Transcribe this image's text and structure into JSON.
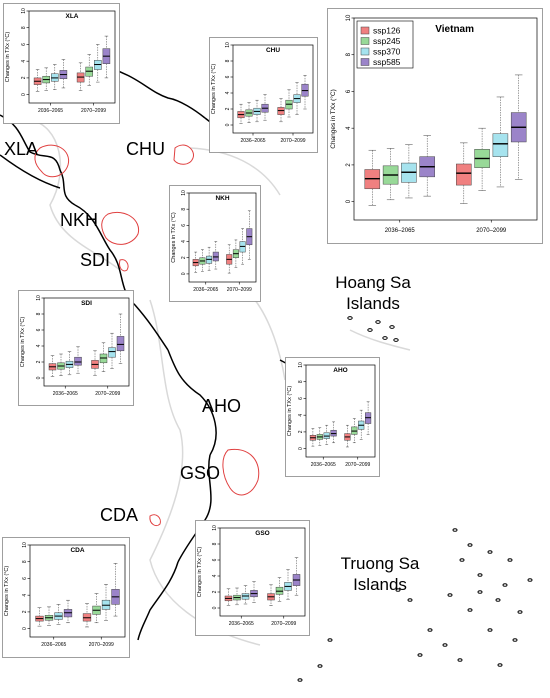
{
  "legend": {
    "entries": [
      {
        "name": "ssp126",
        "color": "#F08080"
      },
      {
        "name": "ssp245",
        "color": "#98D998"
      },
      {
        "name": "ssp370",
        "color": "#A6E3EE"
      },
      {
        "name": "ssp585",
        "color": "#9B84C9"
      }
    ]
  },
  "map": {
    "region_codes": [
      "XLA",
      "CHU",
      "NKH",
      "SDI",
      "AHO",
      "GSO",
      "CDA"
    ],
    "islands": {
      "hoang_sa_line1": "Hoang Sa",
      "hoang_sa_line2": "Islands",
      "truong_sa_line1": "Truong Sa",
      "truong_sa_line2": "Islands"
    },
    "coastline_color": "#000000",
    "region_outline_color": "#E04040"
  },
  "chart_data": [
    {
      "id": "vietnam",
      "type": "box",
      "title": "Vietnam",
      "ylabel": "Changes in TXx (°C)",
      "ylim": [
        -1,
        10
      ],
      "yticks": [
        0,
        2,
        4,
        6,
        8,
        10
      ],
      "categories": [
        "2036–2065",
        "2070–2099"
      ],
      "series": [
        {
          "name": "ssp126",
          "boxes": [
            [
              -0.2,
              0.7,
              1.25,
              1.75,
              2.8
            ],
            [
              -0.1,
              0.9,
              1.55,
              2.05,
              3.2
            ]
          ]
        },
        {
          "name": "ssp245",
          "boxes": [
            [
              0.1,
              0.95,
              1.45,
              1.95,
              2.9
            ],
            [
              0.6,
              1.85,
              2.35,
              2.85,
              4.0
            ]
          ]
        },
        {
          "name": "ssp370",
          "boxes": [
            [
              0.2,
              1.05,
              1.6,
              2.1,
              3.1
            ],
            [
              0.8,
              2.45,
              3.15,
              3.7,
              5.7
            ]
          ]
        },
        {
          "name": "ssp585",
          "boxes": [
            [
              0.3,
              1.35,
              1.9,
              2.45,
              3.6
            ],
            [
              1.2,
              3.25,
              4.05,
              4.85,
              6.9
            ]
          ]
        }
      ]
    },
    {
      "id": "xla",
      "type": "box",
      "title": "XLA",
      "ylabel": "Changes in TXx (°C)",
      "ylim": [
        -1,
        10
      ],
      "yticks": [
        0,
        2,
        4,
        6,
        8,
        10
      ],
      "categories": [
        "2036–2065",
        "2070–2099"
      ],
      "series": [
        {
          "name": "ssp126",
          "boxes": [
            [
              0.4,
              1.2,
              1.6,
              2.0,
              3.0
            ],
            [
              0.5,
              1.5,
              2.1,
              2.6,
              3.8
            ]
          ]
        },
        {
          "name": "ssp245",
          "boxes": [
            [
              0.5,
              1.4,
              1.8,
              2.2,
              3.2
            ],
            [
              1.1,
              2.2,
              2.8,
              3.3,
              4.8
            ]
          ]
        },
        {
          "name": "ssp370",
          "boxes": [
            [
              0.6,
              1.6,
              2.0,
              2.5,
              3.6
            ],
            [
              1.5,
              3.0,
              3.6,
              4.1,
              6.0
            ]
          ]
        },
        {
          "name": "ssp585",
          "boxes": [
            [
              0.8,
              1.9,
              2.4,
              2.9,
              4.2
            ],
            [
              2.0,
              3.7,
              4.6,
              5.5,
              7.0
            ]
          ]
        }
      ]
    },
    {
      "id": "chu",
      "type": "box",
      "title": "CHU",
      "ylabel": "Changes in TXx (°C)",
      "ylim": [
        -1,
        10
      ],
      "yticks": [
        0,
        2,
        4,
        6,
        8,
        10
      ],
      "categories": [
        "2036–2065",
        "2070–2099"
      ],
      "series": [
        {
          "name": "ssp126",
          "boxes": [
            [
              0.2,
              0.9,
              1.3,
              1.7,
              2.6
            ],
            [
              0.4,
              1.3,
              1.8,
              2.2,
              3.3
            ]
          ]
        },
        {
          "name": "ssp245",
          "boxes": [
            [
              0.3,
              1.1,
              1.5,
              1.9,
              2.8
            ],
            [
              1.0,
              2.0,
              2.6,
              3.1,
              4.4
            ]
          ]
        },
        {
          "name": "ssp370",
          "boxes": [
            [
              0.4,
              1.3,
              1.7,
              2.1,
              3.1
            ],
            [
              1.3,
              2.8,
              3.3,
              3.8,
              5.3
            ]
          ]
        },
        {
          "name": "ssp585",
          "boxes": [
            [
              0.6,
              1.6,
              2.1,
              2.6,
              3.8
            ],
            [
              2.0,
              3.6,
              4.3,
              5.1,
              6.2
            ]
          ]
        }
      ]
    },
    {
      "id": "nkh",
      "type": "box",
      "title": "NKH",
      "ylabel": "Changes in TXx (°C)",
      "ylim": [
        -1,
        10
      ],
      "yticks": [
        0,
        2,
        4,
        6,
        8,
        10
      ],
      "categories": [
        "2036–2065",
        "2070–2099"
      ],
      "series": [
        {
          "name": "ssp126",
          "boxes": [
            [
              0.2,
              1.0,
              1.4,
              1.8,
              2.7
            ],
            [
              0.1,
              1.2,
              1.8,
              2.4,
              3.6
            ]
          ]
        },
        {
          "name": "ssp245",
          "boxes": [
            [
              0.3,
              1.2,
              1.6,
              2.0,
              3.0
            ],
            [
              0.8,
              2.0,
              2.5,
              3.0,
              4.2
            ]
          ]
        },
        {
          "name": "ssp370",
          "boxes": [
            [
              0.4,
              1.3,
              1.8,
              2.2,
              3.3
            ],
            [
              1.2,
              2.7,
              3.4,
              4.0,
              5.6
            ]
          ]
        },
        {
          "name": "ssp585",
          "boxes": [
            [
              0.6,
              1.6,
              2.1,
              2.7,
              4.0
            ],
            [
              1.8,
              3.6,
              4.6,
              5.6,
              7.8
            ]
          ]
        }
      ]
    },
    {
      "id": "sdi",
      "type": "box",
      "title": "SDI",
      "ylabel": "Changes in TXx (°C)",
      "ylim": [
        -1,
        10
      ],
      "yticks": [
        0,
        2,
        4,
        6,
        8,
        10
      ],
      "categories": [
        "2036–2065",
        "2070–2099"
      ],
      "series": [
        {
          "name": "ssp126",
          "boxes": [
            [
              0.2,
              1.0,
              1.4,
              1.8,
              2.8
            ],
            [
              0.3,
              1.2,
              1.7,
              2.2,
              3.4
            ]
          ]
        },
        {
          "name": "ssp245",
          "boxes": [
            [
              0.3,
              1.1,
              1.5,
              1.9,
              3.0
            ],
            [
              0.8,
              1.9,
              2.5,
              3.0,
              4.4
            ]
          ]
        },
        {
          "name": "ssp370",
          "boxes": [
            [
              0.4,
              1.3,
              1.7,
              2.1,
              3.3
            ],
            [
              1.2,
              2.6,
              3.3,
              3.8,
              5.6
            ]
          ]
        },
        {
          "name": "ssp585",
          "boxes": [
            [
              0.6,
              1.6,
              2.0,
              2.6,
              3.9
            ],
            [
              1.8,
              3.4,
              4.2,
              5.2,
              8.0
            ]
          ]
        }
      ]
    },
    {
      "id": "aho",
      "type": "box",
      "title": "AHO",
      "ylabel": "Changes in TXx (°C)",
      "ylim": [
        -1,
        10
      ],
      "yticks": [
        0,
        2,
        4,
        6,
        8,
        10
      ],
      "categories": [
        "2036–2065",
        "2070–2099"
      ],
      "series": [
        {
          "name": "ssp126",
          "boxes": [
            [
              0.3,
              1.0,
              1.3,
              1.6,
              2.4
            ],
            [
              0.2,
              1.0,
              1.4,
              1.8,
              2.8
            ]
          ]
        },
        {
          "name": "ssp245",
          "boxes": [
            [
              0.4,
              1.1,
              1.4,
              1.7,
              2.5
            ],
            [
              0.7,
              1.7,
              2.1,
              2.6,
              3.6
            ]
          ]
        },
        {
          "name": "ssp370",
          "boxes": [
            [
              0.5,
              1.2,
              1.5,
              1.9,
              2.8
            ],
            [
              1.1,
              2.3,
              2.8,
              3.3,
              4.6
            ]
          ]
        },
        {
          "name": "ssp585",
          "boxes": [
            [
              0.7,
              1.5,
              1.8,
              2.2,
              3.2
            ],
            [
              1.7,
              3.0,
              3.7,
              4.3,
              5.6
            ]
          ]
        }
      ]
    },
    {
      "id": "gso",
      "type": "box",
      "title": "GSO",
      "ylabel": "Changes in TXx (°C)",
      "ylim": [
        -1,
        10
      ],
      "yticks": [
        0,
        2,
        4,
        6,
        8,
        10
      ],
      "categories": [
        "2036–2065",
        "2070–2099"
      ],
      "series": [
        {
          "name": "ssp126",
          "boxes": [
            [
              0.3,
              0.9,
              1.2,
              1.5,
              2.4
            ],
            [
              0.3,
              1.0,
              1.4,
              1.8,
              2.9
            ]
          ]
        },
        {
          "name": "ssp245",
          "boxes": [
            [
              0.4,
              1.0,
              1.3,
              1.6,
              2.5
            ],
            [
              0.8,
              1.7,
              2.1,
              2.6,
              3.8
            ]
          ]
        },
        {
          "name": "ssp370",
          "boxes": [
            [
              0.5,
              1.1,
              1.5,
              1.8,
              2.8
            ],
            [
              1.1,
              2.2,
              2.7,
              3.2,
              4.8
            ]
          ]
        },
        {
          "name": "ssp585",
          "boxes": [
            [
              0.7,
              1.4,
              1.8,
              2.2,
              3.3
            ],
            [
              1.6,
              2.8,
              3.5,
              4.2,
              6.3
            ]
          ]
        }
      ]
    },
    {
      "id": "cda",
      "type": "box",
      "title": "CDA",
      "ylabel": "Changes in TXx (°C)",
      "ylim": [
        -1,
        10
      ],
      "yticks": [
        0,
        2,
        4,
        6,
        8,
        10
      ],
      "categories": [
        "2036–2065",
        "2070–2099"
      ],
      "series": [
        {
          "name": "ssp126",
          "boxes": [
            [
              0.3,
              0.9,
              1.2,
              1.5,
              2.5
            ],
            [
              0.2,
              0.9,
              1.3,
              1.8,
              3.0
            ]
          ]
        },
        {
          "name": "ssp245",
          "boxes": [
            [
              0.4,
              1.0,
              1.3,
              1.6,
              2.6
            ],
            [
              0.7,
              1.7,
              2.2,
              2.7,
              4.2
            ]
          ]
        },
        {
          "name": "ssp370",
          "boxes": [
            [
              0.5,
              1.1,
              1.5,
              1.9,
              2.9
            ],
            [
              1.0,
              2.3,
              2.8,
              3.4,
              5.3
            ]
          ]
        },
        {
          "name": "ssp585",
          "boxes": [
            [
              0.7,
              1.4,
              1.9,
              2.3,
              3.4
            ],
            [
              1.5,
              2.9,
              3.8,
              4.7,
              7.8
            ]
          ]
        }
      ]
    }
  ]
}
